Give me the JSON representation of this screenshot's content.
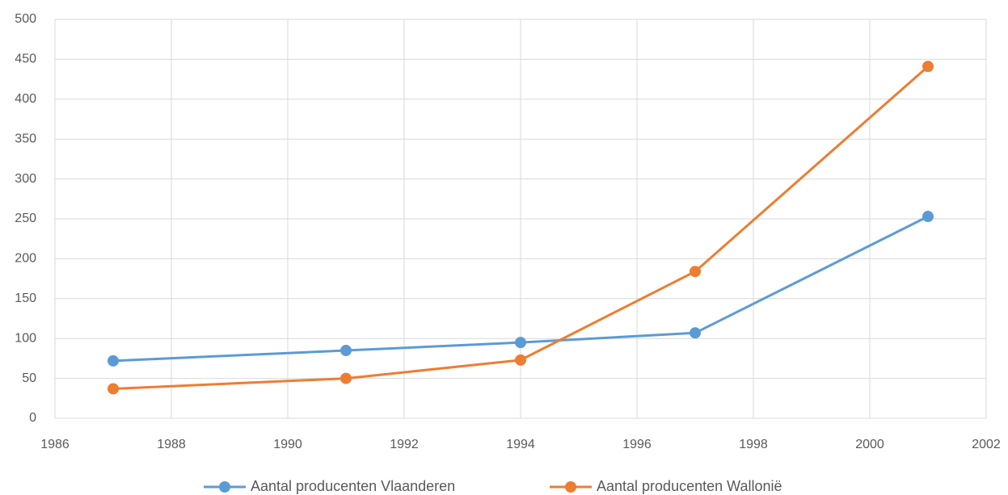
{
  "chart_data": {
    "type": "line",
    "x": [
      1987,
      1991,
      1994,
      1997,
      2001
    ],
    "series": [
      {
        "name": "Aantal producenten Vlaanderen",
        "color": "#5b9bd5",
        "values": [
          72,
          85,
          95,
          107,
          253
        ]
      },
      {
        "name": "Aantal producenten Wallonië",
        "color": "#ed7d31",
        "values": [
          37,
          50,
          73,
          184,
          441
        ]
      }
    ],
    "xlim": [
      1986,
      2002
    ],
    "xticks": [
      1986,
      1988,
      1990,
      1992,
      1994,
      1996,
      1998,
      2000,
      2002
    ],
    "ylim": [
      0,
      500
    ],
    "yticks": [
      0,
      50,
      100,
      150,
      200,
      250,
      300,
      350,
      400,
      450,
      500
    ],
    "grid": true,
    "legend": "bottom"
  }
}
